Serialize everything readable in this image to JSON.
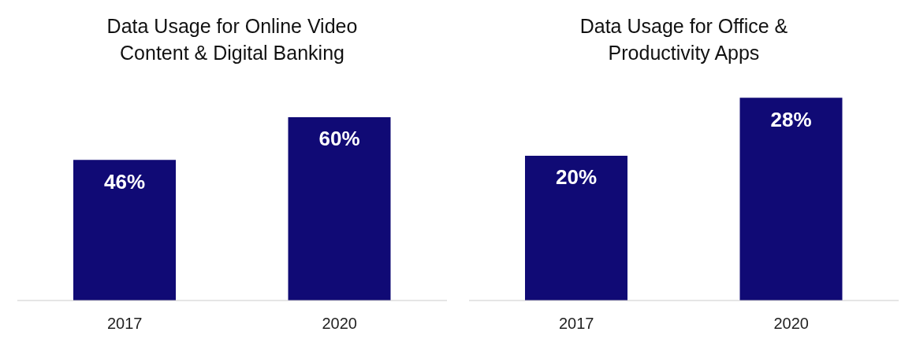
{
  "chart_data": [
    {
      "type": "bar",
      "title": "Data Usage for Online Video Content & Digital Banking",
      "categories": [
        "2017",
        "2020"
      ],
      "values": [
        46,
        60
      ],
      "value_labels": [
        "46%",
        "60%"
      ],
      "color": "#100a75",
      "grid": false,
      "legend": false
    },
    {
      "type": "bar",
      "title": "Data Usage for Office & Productivity Apps",
      "categories": [
        "2017",
        "2020"
      ],
      "values": [
        20,
        28
      ],
      "value_labels": [
        "20%",
        "28%"
      ],
      "color": "#100a75",
      "grid": false,
      "legend": false
    }
  ]
}
